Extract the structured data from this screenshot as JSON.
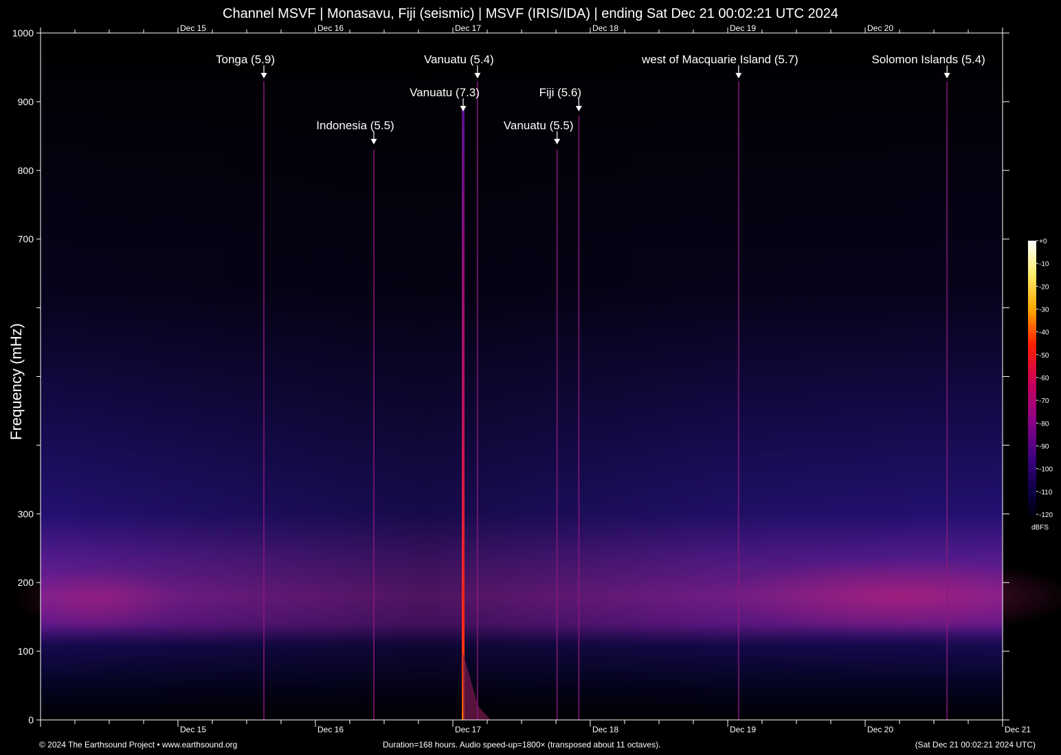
{
  "title": "Channel MSVF | Monasavu, Fiji (seismic) | MSVF (IRIS/IDA) | ending Sat Dec 21 00:02:21 UTC 2024",
  "footer": {
    "left": "© 2024 The Earthsound Project • www.earthsound.org",
    "center": "Duration=168 hours. Audio speed-up=1800× (transposed about 11 octaves).",
    "right": "(Sat Dec 21 00:02:21 2024 UTC)"
  },
  "colors": {
    "background": "#000000",
    "text": "#ffffff",
    "axis": "#ffffff"
  },
  "chart_data": {
    "type": "heatmap",
    "title": "Channel MSVF | Monasavu, Fiji (seismic) | MSVF (IRIS/IDA) | ending Sat Dec 21 00:02:21 UTC 2024",
    "ylabel": "Frequency (mHz)",
    "xlabel": "",
    "ylim": [
      0,
      1000
    ],
    "xlim_hours": [
      0,
      168
    ],
    "y_ticks": [
      0,
      100,
      200,
      300,
      400,
      500,
      600,
      700,
      800,
      900,
      1000
    ],
    "y_tick_labels": [
      "0",
      "100",
      "200",
      "300",
      "",
      "",
      "",
      "700",
      "800",
      "900",
      "1000"
    ],
    "x_ticks": [
      {
        "label": "Dec 15",
        "hour": 24
      },
      {
        "label": "Dec 16",
        "hour": 48
      },
      {
        "label": "Dec 17",
        "hour": 72
      },
      {
        "label": "Dec 18",
        "hour": 96
      },
      {
        "label": "Dec 19",
        "hour": 120
      },
      {
        "label": "Dec 20",
        "hour": 144
      },
      {
        "label": "Dec 21",
        "hour": 168
      }
    ],
    "top_ticks": [
      "Dec 15",
      "Dec 16",
      "Dec 17",
      "Dec 18",
      "Dec 19",
      "Dec 20"
    ],
    "colorbar": {
      "unit": "dBFS",
      "range": [
        -120,
        0
      ],
      "ticks": [
        "+0",
        "-10",
        "-20",
        "-30",
        "-40",
        "-50",
        "-60",
        "-70",
        "-80",
        "-90",
        "-100",
        "-110",
        "-120"
      ]
    },
    "annotations": [
      {
        "label": "Tonga (5.9)",
        "hour": 39.0,
        "tier": 1
      },
      {
        "label": "Indonesia (5.5)",
        "hour": 58.2,
        "tier": 3
      },
      {
        "label": "Vanuatu (7.3)",
        "hour": 73.8,
        "tier": 2
      },
      {
        "label": "Vanuatu (5.4)",
        "hour": 76.3,
        "tier": 1
      },
      {
        "label": "Vanuatu (5.5)",
        "hour": 90.2,
        "tier": 3
      },
      {
        "label": "Fiji (5.6)",
        "hour": 94.0,
        "tier": 2
      },
      {
        "label": "west of Macquarie Island (5.7)",
        "hour": 121.9,
        "tier": 1
      },
      {
        "label": "Solomon Islands (5.4)",
        "hour": 158.3,
        "tier": 1
      }
    ],
    "background_bands": [
      {
        "from_mhz": 140,
        "to_mhz": 260,
        "level_dbfs": -82
      },
      {
        "from_mhz": 0,
        "to_mhz": 130,
        "level_dbfs": -108
      },
      {
        "from_mhz": 260,
        "to_mhz": 600,
        "level_dbfs": -105
      }
    ]
  }
}
